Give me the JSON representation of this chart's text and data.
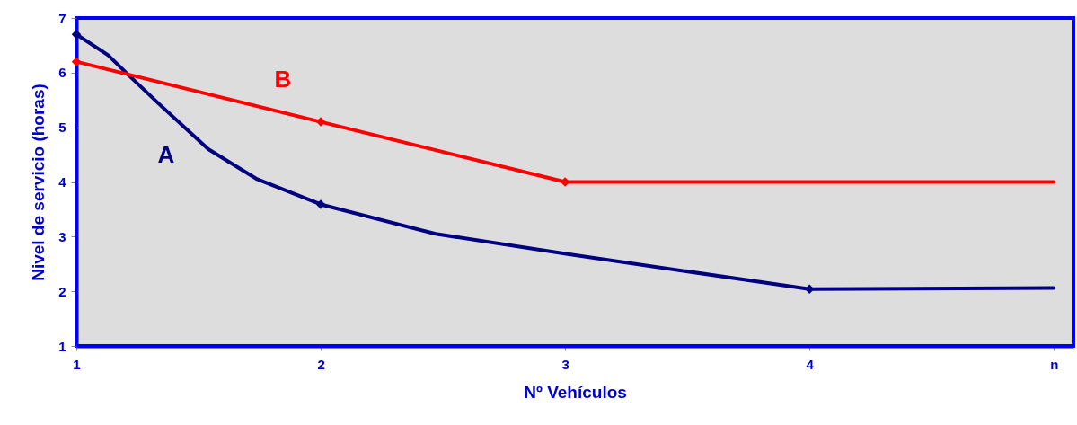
{
  "chart_data": {
    "type": "line",
    "xlabel": "Nº Vehículos",
    "ylabel": "Nivel de servicio (horas)",
    "xlim": [
      1,
      5.08
    ],
    "xticks": [
      1,
      2,
      3,
      4,
      {
        "value": 5,
        "label": "n"
      }
    ],
    "ylim": [
      1,
      7
    ],
    "yticks": [
      1,
      2,
      3,
      4,
      5,
      6,
      7
    ],
    "grid": false,
    "line_style": "solid",
    "series": [
      {
        "name": "A",
        "marker": "none",
        "color": "#000080",
        "x": [
          1,
          1.13,
          1.21,
          1.34,
          1.54,
          1.74,
          2,
          2.47,
          3.01,
          4,
          5
        ],
        "values": [
          6.7,
          6.32,
          5.97,
          5.42,
          4.6,
          4.05,
          3.59,
          3.05,
          2.68,
          2.04,
          2.06
        ]
      },
      {
        "name": "B",
        "marker": "none",
        "color": "#ff0000",
        "x": [
          1,
          2,
          3,
          5
        ],
        "values": [
          6.2,
          5.1,
          4.0,
          4.0
        ]
      },
      {
        "type": "scatter",
        "marker": "diamond",
        "color": "#000080",
        "x": [
          1,
          2,
          4
        ],
        "values": [
          6.7,
          3.59,
          2.04
        ]
      },
      {
        "type": "scatter",
        "marker": "diamond",
        "color": "#ff0000",
        "x": [
          1,
          2,
          3
        ],
        "values": [
          6.2,
          5.1,
          4.0
        ]
      }
    ]
  }
}
